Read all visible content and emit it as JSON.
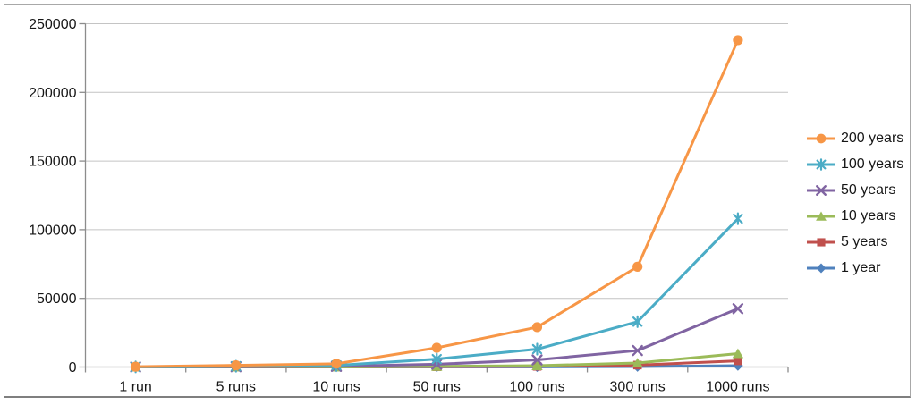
{
  "chart_data": {
    "type": "line",
    "title": "",
    "xlabel": "",
    "ylabel": "",
    "categories": [
      "1 run",
      "5 runs",
      "10 runs",
      "50 runs",
      "100 runs",
      "300 runs",
      "1000 runs"
    ],
    "series": [
      {
        "name": "200 years",
        "color": "#F79646",
        "marker": "circle",
        "values": [
          250,
          1200,
          2400,
          14000,
          29000,
          73000,
          238000
        ]
      },
      {
        "name": "100 years",
        "color": "#4BACC6",
        "marker": "asterisk",
        "values": [
          120,
          600,
          1200,
          5800,
          13000,
          33000,
          108000
        ]
      },
      {
        "name": "50 years",
        "color": "#8064A2",
        "marker": "x",
        "values": [
          50,
          250,
          500,
          2000,
          5200,
          12000,
          42500
        ]
      },
      {
        "name": "10 years",
        "color": "#9BBB59",
        "marker": "triangle",
        "values": [
          10,
          50,
          100,
          500,
          1000,
          2900,
          9800
        ]
      },
      {
        "name": "5 years",
        "color": "#C0504D",
        "marker": "square",
        "values": [
          5,
          25,
          50,
          250,
          500,
          1400,
          4500
        ]
      },
      {
        "name": "1 year",
        "color": "#4F81BD",
        "marker": "diamond",
        "values": [
          1,
          5,
          10,
          50,
          100,
          300,
          1000
        ]
      }
    ],
    "ylim": [
      0,
      250000
    ],
    "y_ticks": [
      0,
      50000,
      100000,
      150000,
      200000,
      250000
    ],
    "y_tick_labels": [
      "0",
      "50000",
      "100000",
      "150000",
      "200000",
      "250000"
    ],
    "legend_position": "right",
    "gridlines": "horizontal"
  },
  "styles": {
    "axis_color": "#8c8c8c",
    "gridline_color": "#c4c4c4",
    "text_color": "#161616",
    "background": "#ffffff"
  }
}
